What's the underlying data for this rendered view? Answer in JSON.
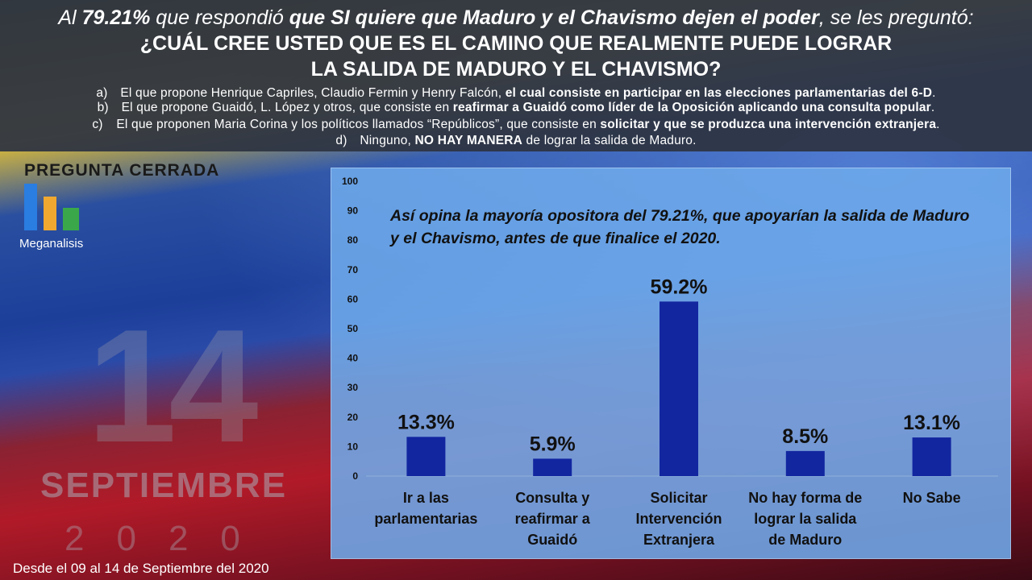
{
  "header": {
    "intro_a": "Al ",
    "intro_b": "79.21%",
    "intro_c": " que respondió ",
    "intro_d": "que SI quiere que Maduro y el Chavismo dejen el poder",
    "intro_e": ", se les preguntó:",
    "question_line1": "¿CUÁL CREE USTED QUE ES EL CAMINO QUE REALMENTE PUEDE LOGRAR",
    "question_line2": "LA SALIDA DE MADURO Y EL CHAVISMO?",
    "options": [
      {
        "letter": "a)",
        "plain": "El que propone Henrique Capriles, Claudio Fermin y Henry Falcón, ",
        "bold": "el cual consiste en participar en las elecciones parlamentarias del 6-D",
        "tail": "."
      },
      {
        "letter": "b)",
        "plain": "El que propone Guaidó, L. López y otros, que consiste en ",
        "bold": "reafirmar a Guaidó como líder de la Oposición aplicando una consulta popular",
        "tail": "."
      },
      {
        "letter": "c)",
        "plain": "El que proponen Maria Corina y los políticos llamados “Repúblicos”, que consiste en ",
        "bold": "solicitar y que se produzca una intervención extranjera",
        "tail": "."
      },
      {
        "letter": "d)",
        "plain": "Ninguno, ",
        "bold": "NO HAY MANERA",
        "tail": " de lograr la salida de Maduro."
      }
    ]
  },
  "side": {
    "pregunta": "PREGUNTA CERRADA",
    "logo_text": "Meganalisis",
    "logo_colors": [
      "#2a7de1",
      "#f0a830",
      "#3aa84a"
    ],
    "day": "14",
    "month": "SEPTIEMBRE",
    "year": "2020",
    "footer": "Desde el 09 al 14 de Septiembre del 2020"
  },
  "chart_data": {
    "type": "bar",
    "title": "Así opina la mayoría opositora del 79.21%, que apoyarían la salida de Maduro y el Chavismo, antes de que finalice el 2020.",
    "categories": [
      [
        "Ir a las",
        "parlamentarias"
      ],
      [
        "Consulta y",
        "reafirmar a",
        "Guaidó"
      ],
      [
        "Solicitar",
        "Intervención",
        "Extranjera"
      ],
      [
        "No hay forma de",
        "lograr la salida",
        "de Maduro"
      ],
      [
        "No Sabe"
      ]
    ],
    "values": [
      13.3,
      5.9,
      59.2,
      8.5,
      13.1
    ],
    "value_labels": [
      "13.3%",
      "5.9%",
      "59.2%",
      "8.5%",
      "13.1%"
    ],
    "ylim": [
      0,
      100
    ],
    "yticks": [
      0,
      10,
      20,
      30,
      40,
      50,
      60,
      70,
      80,
      90,
      100
    ],
    "bar_color": "#1226a0",
    "grid": false
  }
}
